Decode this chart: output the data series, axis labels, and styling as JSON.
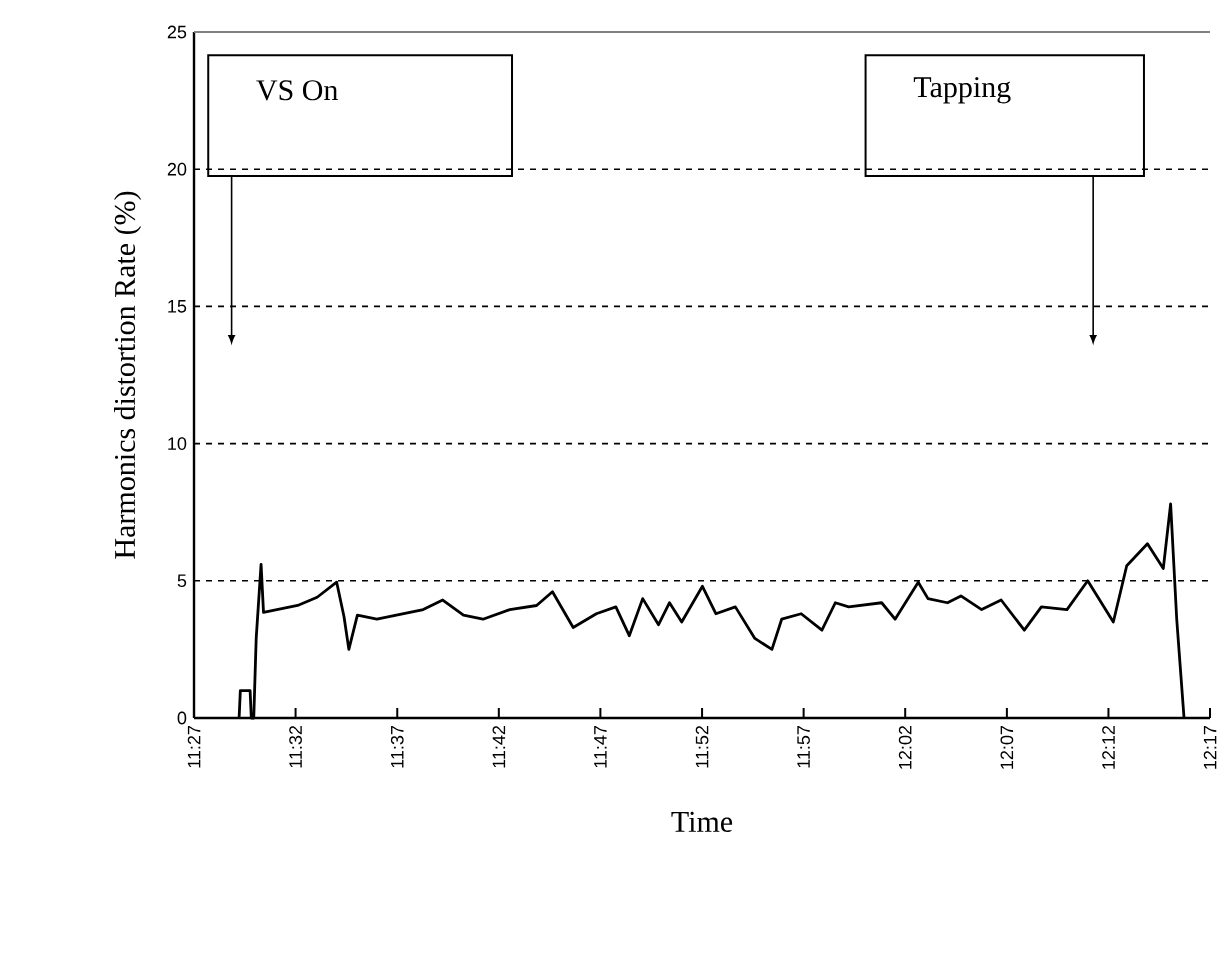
{
  "chart_data": {
    "type": "line",
    "xlabel": "Time",
    "ylabel": "Harmonics distortion Rate (%)",
    "xlim": [
      11.45,
      12.2833
    ],
    "ylim": [
      0,
      25
    ],
    "xticks": [
      {
        "value": 11.45,
        "label": "11:27"
      },
      {
        "value": 11.5333,
        "label": "11:32"
      },
      {
        "value": 11.6167,
        "label": "11:37"
      },
      {
        "value": 11.7,
        "label": "11:42"
      },
      {
        "value": 11.7833,
        "label": "11:47"
      },
      {
        "value": 11.8667,
        "label": "11:52"
      },
      {
        "value": 11.95,
        "label": "11:57"
      },
      {
        "value": 12.0333,
        "label": "12:02"
      },
      {
        "value": 12.1167,
        "label": "12:07"
      },
      {
        "value": 12.2,
        "label": "12:12"
      },
      {
        "value": 12.2833,
        "label": "12:17"
      }
    ],
    "yticks": [
      0,
      5,
      10,
      15,
      20,
      25
    ],
    "grid": "y",
    "marker": "none",
    "line_style": "solid",
    "annotations": [
      "VS On",
      "Tapping"
    ],
    "series": [
      {
        "color": "#000000",
        "x": [
          11.487,
          11.488,
          11.496,
          11.497,
          11.499,
          11.501,
          11.505,
          11.507,
          11.518,
          11.535,
          11.551,
          11.567,
          11.573,
          11.577,
          11.584,
          11.6,
          11.622,
          11.638,
          11.654,
          11.671,
          11.687,
          11.709,
          11.731,
          11.744,
          11.761,
          11.78,
          11.796,
          11.807,
          11.818,
          11.831,
          11.84,
          11.85,
          11.867,
          11.878,
          11.894,
          11.91,
          11.924,
          11.932,
          11.948,
          11.965,
          11.976,
          11.987,
          12.014,
          12.025,
          12.044,
          12.052,
          12.068,
          12.079,
          12.096,
          12.112,
          12.131,
          12.145,
          12.166,
          12.183,
          12.204,
          12.215,
          12.232,
          12.245,
          12.251,
          12.256,
          12.262
        ],
        "values": [
          0,
          1.0,
          1.0,
          0,
          0,
          2.9,
          5.6,
          3.85,
          3.95,
          4.1,
          4.4,
          4.95,
          3.7,
          2.5,
          3.75,
          3.6,
          3.8,
          3.95,
          4.3,
          3.75,
          3.6,
          3.95,
          4.1,
          4.6,
          3.3,
          3.8,
          4.05,
          3.0,
          4.35,
          3.4,
          4.2,
          3.5,
          4.8,
          3.8,
          4.05,
          2.9,
          2.5,
          3.6,
          3.8,
          3.2,
          4.2,
          4.05,
          4.2,
          3.6,
          4.95,
          4.35,
          4.2,
          4.45,
          3.95,
          4.3,
          3.2,
          4.05,
          3.95,
          5.0,
          3.5,
          5.55,
          6.35,
          5.45,
          7.8,
          3.6,
          0
        ]
      }
    ]
  }
}
